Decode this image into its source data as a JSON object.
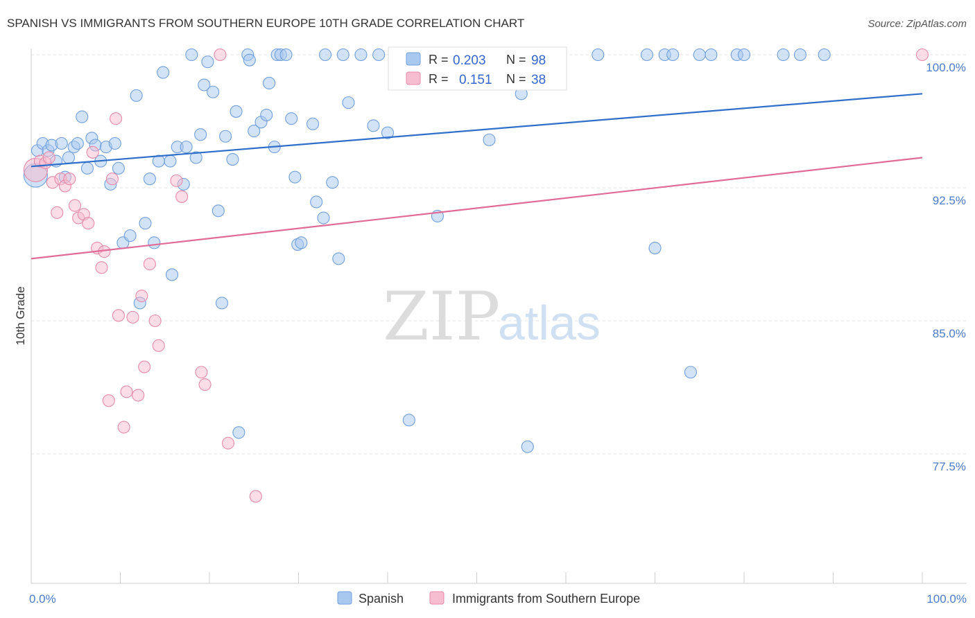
{
  "chart_data": {
    "type": "scatter",
    "title": "SPANISH VS IMMIGRANTS FROM SOUTHERN EUROPE 10TH GRADE CORRELATION CHART",
    "source": "Source: ZipAtlas.com",
    "ylabel": "10th Grade",
    "xlim": [
      0,
      100
    ],
    "ylim": [
      70.0,
      101.5
    ],
    "x_tick_labels": [
      "0.0%",
      "100.0%"
    ],
    "y_ticks": [
      {
        "value": 100.0,
        "label": "100.0%"
      },
      {
        "value": 92.5,
        "label": "92.5%"
      },
      {
        "value": 85.0,
        "label": "85.0%"
      },
      {
        "value": 77.5,
        "label": "77.5%"
      }
    ],
    "watermark": {
      "zip": "ZIP",
      "atlas": "atlas"
    },
    "legend": {
      "r_label": "R =",
      "n_label": "N =",
      "entries": [
        {
          "name": "Spanish",
          "r": "0.203",
          "n": "98",
          "color": "#a8c8f0",
          "stroke": "#6f9fdc"
        },
        {
          "name": "Immigrants from Southern Europe",
          "r": "0.151",
          "n": "38",
          "color": "#f6bcd0",
          "stroke": "#e58aa9"
        }
      ]
    },
    "series": [
      {
        "name": "Spanish",
        "color": "#a8c8f0",
        "stroke": "#6f9fdc",
        "trend_color": "#2f6fca",
        "trend": {
          "x": [
            0,
            100
          ],
          "y": [
            93.7,
            97.8
          ]
        },
        "points": [
          [
            0.5,
            93.2
          ],
          [
            0.7,
            94.6
          ],
          [
            1.3,
            95.0
          ],
          [
            1.9,
            94.6
          ],
          [
            2.3,
            94.9
          ],
          [
            2.8,
            94.0
          ],
          [
            3.4,
            95.0
          ],
          [
            3.8,
            93.1
          ],
          [
            4.2,
            94.2
          ],
          [
            4.8,
            94.8
          ],
          [
            5.2,
            95.0
          ],
          [
            5.7,
            96.5
          ],
          [
            6.3,
            93.6
          ],
          [
            6.8,
            95.3
          ],
          [
            7.2,
            94.9
          ],
          [
            7.8,
            94.0
          ],
          [
            8.4,
            94.8
          ],
          [
            8.9,
            92.7
          ],
          [
            9.4,
            95.0
          ],
          [
            9.8,
            93.6
          ],
          [
            10.3,
            89.4
          ],
          [
            11.1,
            89.8
          ],
          [
            11.8,
            97.7
          ],
          [
            12.2,
            86.0
          ],
          [
            12.8,
            90.5
          ],
          [
            13.3,
            93.0
          ],
          [
            13.8,
            89.4
          ],
          [
            14.3,
            94.0
          ],
          [
            14.8,
            99.0
          ],
          [
            15.6,
            94.0
          ],
          [
            15.8,
            87.6
          ],
          [
            16.4,
            94.8
          ],
          [
            17.1,
            92.7
          ],
          [
            17.4,
            94.8
          ],
          [
            18.0,
            100.0
          ],
          [
            18.5,
            94.2
          ],
          [
            19.0,
            95.5
          ],
          [
            19.4,
            98.3
          ],
          [
            19.8,
            99.6
          ],
          [
            20.4,
            97.9
          ],
          [
            21.0,
            91.2
          ],
          [
            21.4,
            86.0
          ],
          [
            21.8,
            95.4
          ],
          [
            22.6,
            94.1
          ],
          [
            23.0,
            96.8
          ],
          [
            23.3,
            78.7
          ],
          [
            24.3,
            100.0
          ],
          [
            24.5,
            99.7
          ],
          [
            25.0,
            95.7
          ],
          [
            25.8,
            96.2
          ],
          [
            26.4,
            96.6
          ],
          [
            26.7,
            98.4
          ],
          [
            27.3,
            94.8
          ],
          [
            27.6,
            100.0
          ],
          [
            28.0,
            100.0
          ],
          [
            28.6,
            100.0
          ],
          [
            29.2,
            96.4
          ],
          [
            29.6,
            93.1
          ],
          [
            29.9,
            89.3
          ],
          [
            30.3,
            89.4
          ],
          [
            31.6,
            96.1
          ],
          [
            32.0,
            91.7
          ],
          [
            32.8,
            90.8
          ],
          [
            33.0,
            100.0
          ],
          [
            33.8,
            92.8
          ],
          [
            34.5,
            88.5
          ],
          [
            35.0,
            100.0
          ],
          [
            35.6,
            97.3
          ],
          [
            37.0,
            100.0
          ],
          [
            38.4,
            96.0
          ],
          [
            39.0,
            100.0
          ],
          [
            40.0,
            95.6
          ],
          [
            41.0,
            100.0
          ],
          [
            41.5,
            100.0
          ],
          [
            42.4,
            79.4
          ],
          [
            43.1,
            100.0
          ],
          [
            45.0,
            100.0
          ],
          [
            45.6,
            90.9
          ],
          [
            46.6,
            100.0
          ],
          [
            48.0,
            100.0
          ],
          [
            51.4,
            95.2
          ],
          [
            55.0,
            97.8
          ],
          [
            55.7,
            77.9
          ],
          [
            56.0,
            100.0
          ],
          [
            58.3,
            100.0
          ],
          [
            63.6,
            100.0
          ],
          [
            69.1,
            100.0
          ],
          [
            70.0,
            89.1
          ],
          [
            71.1,
            100.0
          ],
          [
            72.0,
            100.0
          ],
          [
            74.0,
            82.1
          ],
          [
            75.0,
            100.0
          ],
          [
            76.3,
            100.0
          ],
          [
            79.2,
            100.0
          ],
          [
            80.0,
            100.0
          ],
          [
            84.4,
            100.0
          ],
          [
            86.3,
            100.0
          ],
          [
            89.0,
            100.0
          ]
        ]
      },
      {
        "name": "Immigrants from Southern Europe",
        "color": "#f6bcd0",
        "stroke": "#e58aa9",
        "trend_color": "#e06b97",
        "trend": {
          "x": [
            0,
            100
          ],
          "y": [
            88.5,
            94.2
          ]
        },
        "points": [
          [
            0.5,
            93.5
          ],
          [
            1.0,
            94.0
          ],
          [
            1.6,
            93.9
          ],
          [
            2.0,
            94.2
          ],
          [
            2.4,
            92.8
          ],
          [
            2.9,
            91.1
          ],
          [
            3.3,
            93.0
          ],
          [
            3.8,
            92.6
          ],
          [
            4.3,
            93.0
          ],
          [
            4.9,
            91.5
          ],
          [
            5.3,
            90.8
          ],
          [
            5.9,
            91.0
          ],
          [
            6.4,
            90.5
          ],
          [
            6.9,
            94.5
          ],
          [
            7.4,
            89.1
          ],
          [
            7.9,
            88.0
          ],
          [
            8.2,
            88.9
          ],
          [
            8.7,
            80.5
          ],
          [
            9.1,
            93.0
          ],
          [
            9.5,
            96.4
          ],
          [
            9.8,
            85.3
          ],
          [
            10.4,
            79.0
          ],
          [
            10.7,
            81.0
          ],
          [
            11.4,
            85.2
          ],
          [
            12.0,
            80.8
          ],
          [
            12.4,
            86.4
          ],
          [
            12.7,
            82.4
          ],
          [
            13.3,
            88.2
          ],
          [
            13.9,
            85.0
          ],
          [
            14.3,
            83.6
          ],
          [
            16.3,
            92.9
          ],
          [
            16.9,
            92.0
          ],
          [
            19.1,
            82.1
          ],
          [
            19.5,
            81.4
          ],
          [
            21.2,
            100.0
          ],
          [
            22.1,
            78.1
          ],
          [
            25.2,
            75.1
          ],
          [
            100.0,
            100.0
          ]
        ]
      }
    ]
  }
}
